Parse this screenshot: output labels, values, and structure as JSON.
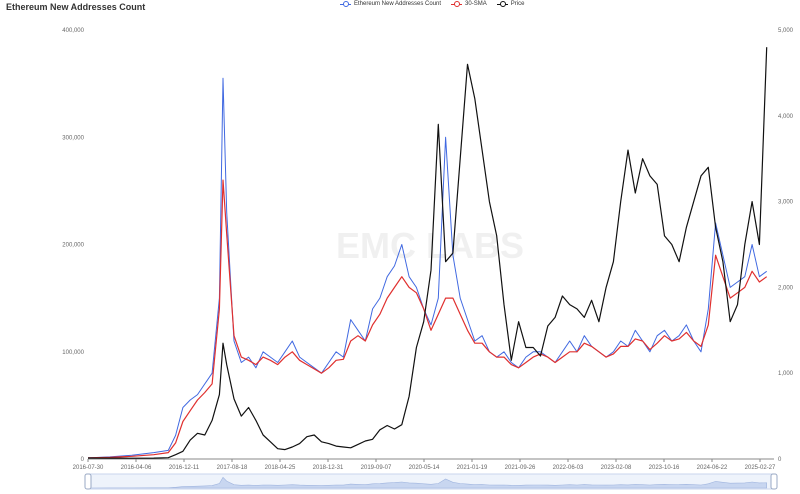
{
  "chart_data": {
    "type": "line",
    "title": "Ethereum New Addresses Count",
    "watermark": "EMC LABS",
    "x_tick_labels": [
      "2016-07-30",
      "2016-04-06",
      "2016-12-11",
      "2017-08-18",
      "2018-04-25",
      "2018-12-31",
      "2019-09-07",
      "2020-05-14",
      "2021-01-19",
      "2021-09-26",
      "2022-06-03",
      "2023-02-08",
      "2023-10-16",
      "2024-06-22",
      "2025-02-27"
    ],
    "y_left_ticks": [
      "0",
      "100,000",
      "200,000",
      "300,000",
      "400,000"
    ],
    "y_right_ticks": [
      "0",
      "1,000",
      "2,000",
      "3,000",
      "4,000",
      "5,000"
    ],
    "ylim_left": [
      0,
      400000
    ],
    "ylim_right": [
      0,
      5000
    ],
    "x_note": "x values are months since 2016-07 (axis tick labels printed as shown)",
    "series": [
      {
        "name": "Ethereum New Addresses Count",
        "axis": "left",
        "color": "#4169e1",
        "values": [
          [
            0,
            1000
          ],
          [
            3,
            2000
          ],
          [
            6,
            3500
          ],
          [
            9,
            6000
          ],
          [
            11,
            8000
          ],
          [
            12,
            22000
          ],
          [
            13,
            48000
          ],
          [
            14,
            55000
          ],
          [
            15,
            60000
          ],
          [
            16,
            70000
          ],
          [
            17,
            80000
          ],
          [
            18,
            150000
          ],
          [
            18.5,
            355000
          ],
          [
            19,
            230000
          ],
          [
            20,
            110000
          ],
          [
            21,
            90000
          ],
          [
            22,
            95000
          ],
          [
            23,
            85000
          ],
          [
            24,
            100000
          ],
          [
            25,
            95000
          ],
          [
            26,
            90000
          ],
          [
            27,
            100000
          ],
          [
            28,
            110000
          ],
          [
            29,
            95000
          ],
          [
            30,
            90000
          ],
          [
            31,
            85000
          ],
          [
            32,
            80000
          ],
          [
            33,
            90000
          ],
          [
            34,
            100000
          ],
          [
            35,
            95000
          ],
          [
            36,
            130000
          ],
          [
            37,
            120000
          ],
          [
            38,
            110000
          ],
          [
            39,
            140000
          ],
          [
            40,
            150000
          ],
          [
            41,
            170000
          ],
          [
            42,
            180000
          ],
          [
            43,
            200000
          ],
          [
            44,
            170000
          ],
          [
            45,
            160000
          ],
          [
            46,
            140000
          ],
          [
            47,
            125000
          ],
          [
            48,
            150000
          ],
          [
            49,
            300000
          ],
          [
            50,
            190000
          ],
          [
            51,
            150000
          ],
          [
            52,
            130000
          ],
          [
            53,
            110000
          ],
          [
            54,
            115000
          ],
          [
            55,
            100000
          ],
          [
            56,
            95000
          ],
          [
            57,
            100000
          ],
          [
            58,
            90000
          ],
          [
            59,
            85000
          ],
          [
            60,
            95000
          ],
          [
            61,
            100000
          ],
          [
            62,
            100000
          ],
          [
            63,
            95000
          ],
          [
            64,
            90000
          ],
          [
            65,
            100000
          ],
          [
            66,
            110000
          ],
          [
            67,
            100000
          ],
          [
            68,
            115000
          ],
          [
            69,
            105000
          ],
          [
            70,
            100000
          ],
          [
            71,
            95000
          ],
          [
            72,
            100000
          ],
          [
            73,
            110000
          ],
          [
            74,
            105000
          ],
          [
            75,
            120000
          ],
          [
            76,
            110000
          ],
          [
            77,
            100000
          ],
          [
            78,
            115000
          ],
          [
            79,
            120000
          ],
          [
            80,
            110000
          ],
          [
            81,
            115000
          ],
          [
            82,
            125000
          ],
          [
            83,
            110000
          ],
          [
            84,
            100000
          ],
          [
            85,
            140000
          ],
          [
            86,
            220000
          ],
          [
            87,
            190000
          ],
          [
            88,
            160000
          ],
          [
            89,
            165000
          ],
          [
            90,
            170000
          ],
          [
            91,
            200000
          ],
          [
            92,
            170000
          ],
          [
            93,
            175000
          ]
        ]
      },
      {
        "name": "30-SMA",
        "axis": "left",
        "color": "#e0302f",
        "values": [
          [
            0,
            1000
          ],
          [
            3,
            1500
          ],
          [
            6,
            2500
          ],
          [
            9,
            4000
          ],
          [
            11,
            6000
          ],
          [
            12,
            15000
          ],
          [
            13,
            35000
          ],
          [
            14,
            45000
          ],
          [
            15,
            55000
          ],
          [
            16,
            62000
          ],
          [
            17,
            70000
          ],
          [
            18,
            140000
          ],
          [
            18.5,
            260000
          ],
          [
            19,
            210000
          ],
          [
            20,
            115000
          ],
          [
            21,
            95000
          ],
          [
            22,
            92000
          ],
          [
            23,
            88000
          ],
          [
            24,
            95000
          ],
          [
            25,
            92000
          ],
          [
            26,
            88000
          ],
          [
            27,
            95000
          ],
          [
            28,
            100000
          ],
          [
            29,
            92000
          ],
          [
            30,
            88000
          ],
          [
            31,
            84000
          ],
          [
            32,
            80000
          ],
          [
            33,
            85000
          ],
          [
            34,
            92000
          ],
          [
            35,
            93000
          ],
          [
            36,
            110000
          ],
          [
            37,
            115000
          ],
          [
            38,
            110000
          ],
          [
            39,
            125000
          ],
          [
            40,
            135000
          ],
          [
            41,
            150000
          ],
          [
            42,
            160000
          ],
          [
            43,
            170000
          ],
          [
            44,
            160000
          ],
          [
            45,
            155000
          ],
          [
            46,
            140000
          ],
          [
            47,
            120000
          ],
          [
            48,
            135000
          ],
          [
            49,
            150000
          ],
          [
            50,
            150000
          ],
          [
            51,
            135000
          ],
          [
            52,
            120000
          ],
          [
            53,
            108000
          ],
          [
            54,
            108000
          ],
          [
            55,
            100000
          ],
          [
            56,
            95000
          ],
          [
            57,
            95000
          ],
          [
            58,
            88000
          ],
          [
            59,
            85000
          ],
          [
            60,
            90000
          ],
          [
            61,
            95000
          ],
          [
            62,
            98000
          ],
          [
            63,
            95000
          ],
          [
            64,
            90000
          ],
          [
            65,
            95000
          ],
          [
            66,
            100000
          ],
          [
            67,
            100000
          ],
          [
            68,
            108000
          ],
          [
            69,
            105000
          ],
          [
            70,
            100000
          ],
          [
            71,
            95000
          ],
          [
            72,
            98000
          ],
          [
            73,
            105000
          ],
          [
            74,
            105000
          ],
          [
            75,
            112000
          ],
          [
            76,
            110000
          ],
          [
            77,
            102000
          ],
          [
            78,
            108000
          ],
          [
            79,
            115000
          ],
          [
            80,
            110000
          ],
          [
            81,
            112000
          ],
          [
            82,
            118000
          ],
          [
            83,
            110000
          ],
          [
            84,
            105000
          ],
          [
            85,
            125000
          ],
          [
            86,
            190000
          ],
          [
            87,
            170000
          ],
          [
            88,
            150000
          ],
          [
            89,
            155000
          ],
          [
            90,
            160000
          ],
          [
            91,
            175000
          ],
          [
            92,
            165000
          ],
          [
            93,
            170000
          ]
        ]
      },
      {
        "name": "Price",
        "axis": "right",
        "color": "#111111",
        "values": [
          [
            0,
            12
          ],
          [
            3,
            10
          ],
          [
            6,
            9
          ],
          [
            9,
            11
          ],
          [
            11,
            15
          ],
          [
            12,
            50
          ],
          [
            13,
            90
          ],
          [
            14,
            220
          ],
          [
            15,
            300
          ],
          [
            16,
            280
          ],
          [
            17,
            450
          ],
          [
            18,
            750
          ],
          [
            18.5,
            1350
          ],
          [
            19,
            1100
          ],
          [
            20,
            700
          ],
          [
            21,
            500
          ],
          [
            22,
            600
          ],
          [
            23,
            450
          ],
          [
            24,
            280
          ],
          [
            25,
            200
          ],
          [
            26,
            120
          ],
          [
            27,
            110
          ],
          [
            28,
            140
          ],
          [
            29,
            180
          ],
          [
            30,
            260
          ],
          [
            31,
            280
          ],
          [
            32,
            200
          ],
          [
            33,
            180
          ],
          [
            34,
            150
          ],
          [
            35,
            140
          ],
          [
            36,
            130
          ],
          [
            37,
            170
          ],
          [
            38,
            210
          ],
          [
            39,
            230
          ],
          [
            40,
            340
          ],
          [
            41,
            390
          ],
          [
            42,
            350
          ],
          [
            43,
            400
          ],
          [
            44,
            730
          ],
          [
            45,
            1300
          ],
          [
            46,
            1600
          ],
          [
            47,
            2200
          ],
          [
            48,
            3900
          ],
          [
            49,
            2300
          ],
          [
            50,
            2400
          ],
          [
            51,
            3500
          ],
          [
            52,
            4600
          ],
          [
            53,
            4200
          ],
          [
            54,
            3600
          ],
          [
            55,
            3000
          ],
          [
            56,
            2600
          ],
          [
            57,
            1800
          ],
          [
            58,
            1150
          ],
          [
            59,
            1600
          ],
          [
            60,
            1300
          ],
          [
            61,
            1300
          ],
          [
            62,
            1200
          ],
          [
            63,
            1550
          ],
          [
            64,
            1650
          ],
          [
            65,
            1900
          ],
          [
            66,
            1800
          ],
          [
            67,
            1750
          ],
          [
            68,
            1650
          ],
          [
            69,
            1850
          ],
          [
            70,
            1600
          ],
          [
            71,
            2000
          ],
          [
            72,
            2300
          ],
          [
            73,
            3000
          ],
          [
            74,
            3600
          ],
          [
            75,
            3100
          ],
          [
            76,
            3500
          ],
          [
            77,
            3300
          ],
          [
            78,
            3200
          ],
          [
            79,
            2600
          ],
          [
            80,
            2500
          ],
          [
            81,
            2300
          ],
          [
            82,
            2700
          ],
          [
            83,
            3000
          ],
          [
            84,
            3300
          ],
          [
            85,
            3400
          ],
          [
            86,
            2700
          ],
          [
            87,
            2300
          ],
          [
            88,
            1600
          ],
          [
            89,
            1800
          ],
          [
            90,
            2500
          ],
          [
            91,
            3000
          ],
          [
            92,
            2500
          ],
          [
            93,
            4800
          ]
        ]
      }
    ],
    "legend_position": "top-center",
    "grid": false
  }
}
